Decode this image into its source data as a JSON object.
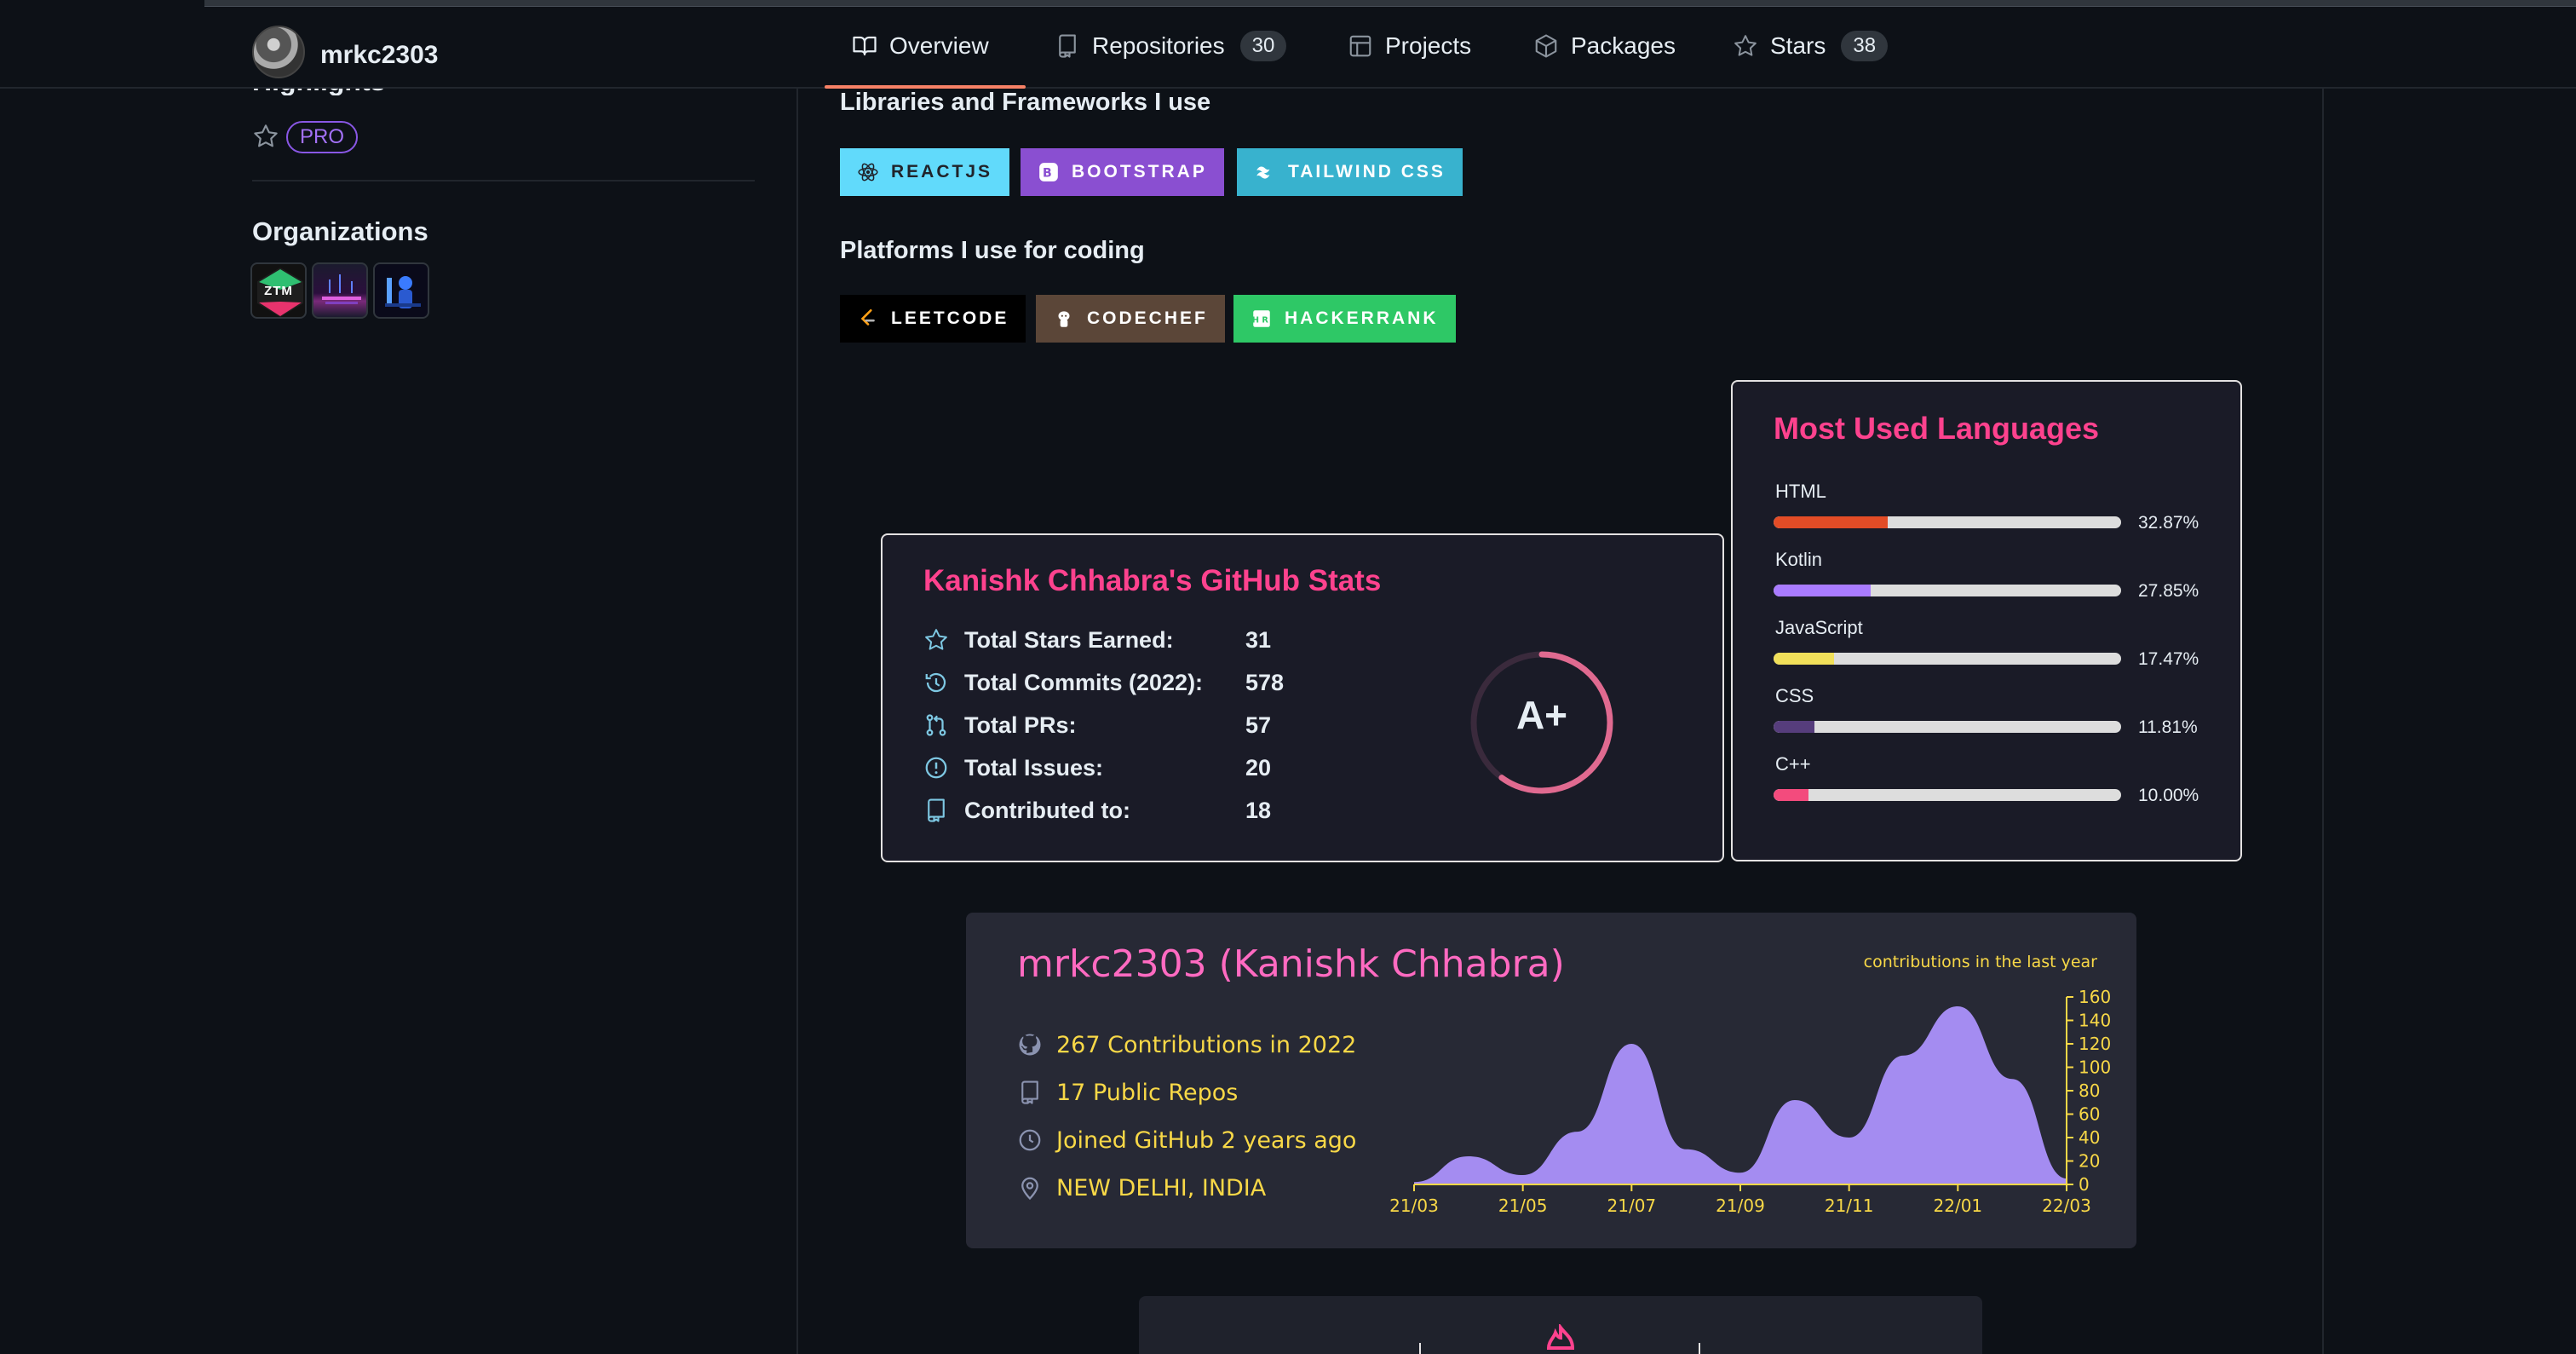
{
  "header": {
    "username": "mrkc2303",
    "tabs": [
      {
        "label": "Overview"
      },
      {
        "label": "Repositories",
        "count": "30"
      },
      {
        "label": "Projects"
      },
      {
        "label": "Packages"
      },
      {
        "label": "Stars",
        "count": "38"
      }
    ]
  },
  "sidebar": {
    "highlights_title": "Highlights",
    "pro_badge": "PRO",
    "organizations_title": "Organizations",
    "org_ztm_label": "ZTM"
  },
  "readme": {
    "libraries_title": "Libraries and Frameworks I use",
    "libraries": [
      {
        "label": "REACTJS",
        "bg": "#61dafb",
        "fg": "#20232a"
      },
      {
        "label": "BOOTSTRAP",
        "bg": "#8a4fd1",
        "fg": "#ffffff"
      },
      {
        "label": "TAILWIND CSS",
        "bg": "#38b2ce",
        "fg": "#ffffff"
      }
    ],
    "platforms_title": "Platforms I use for coding",
    "platforms": [
      {
        "label": "LEETCODE",
        "bg": "#000000",
        "fg": "#ffffff"
      },
      {
        "label": "CODECHEF",
        "bg": "#5b4638",
        "fg": "#ffffff"
      },
      {
        "label": "HACKERRANK",
        "bg": "#2ec866",
        "fg": "#ffffff"
      }
    ]
  },
  "languages": {
    "title": "Most Used Languages",
    "items": [
      {
        "name": "HTML",
        "pct": "32.87%",
        "value": 32.87,
        "color": "#e34c26"
      },
      {
        "name": "Kotlin",
        "pct": "27.85%",
        "value": 27.85,
        "color": "#A97BFF"
      },
      {
        "name": "JavaScript",
        "pct": "17.47%",
        "value": 17.47,
        "color": "#f1e05a"
      },
      {
        "name": "CSS",
        "pct": "11.81%",
        "value": 11.81,
        "color": "#563d7c"
      },
      {
        "name": "C++",
        "pct": "10.00%",
        "value": 10.0,
        "color": "#f34b7d"
      }
    ]
  },
  "stats": {
    "title": "Kanishk Chhabra's GitHub Stats",
    "rows": [
      {
        "icon": "star-icon",
        "label": "Total Stars Earned:",
        "value": "31"
      },
      {
        "icon": "history-icon",
        "label": "Total Commits (2022):",
        "value": "578"
      },
      {
        "icon": "pull-request-icon",
        "label": "Total PRs:",
        "value": "57"
      },
      {
        "icon": "issue-icon",
        "label": "Total Issues:",
        "value": "20"
      },
      {
        "icon": "repo-icon",
        "label": "Contributed to:",
        "value": "18"
      }
    ],
    "rank": "A+",
    "rank_progress": 0.6
  },
  "contributions": {
    "name": "mrkc2303 (Kanishk Chhabra)",
    "caption": "contributions in the last year",
    "rows": [
      {
        "icon": "github-icon",
        "text": "267 Contributions in 2022"
      },
      {
        "icon": "repo-icon",
        "text": "17 Public Repos"
      },
      {
        "icon": "clock-icon",
        "text": "Joined GitHub 2 years ago"
      },
      {
        "icon": "location-icon",
        "text": "NEW DELHI, INDIA"
      }
    ],
    "colors": {
      "text": "#f8d847",
      "title": "#ff6ac1",
      "area": "#a48cf1",
      "bg": "#272935"
    }
  },
  "chart_data": {
    "type": "area",
    "title": "contributions in the last year",
    "x": [
      "21/03",
      "21/04",
      "21/05",
      "21/06",
      "21/07",
      "21/08",
      "21/09",
      "21/10",
      "21/11",
      "21/12",
      "22/01",
      "22/02",
      "22/03"
    ],
    "values": [
      2,
      24,
      8,
      45,
      120,
      30,
      10,
      72,
      40,
      110,
      152,
      90,
      5
    ],
    "xticks": [
      "21/03",
      "21/05",
      "21/07",
      "21/09",
      "21/11",
      "22/01",
      "22/03"
    ],
    "yticks": [
      "0",
      "20",
      "40",
      "60",
      "80",
      "100",
      "120",
      "140",
      "160"
    ],
    "ylim": [
      0,
      160
    ]
  }
}
